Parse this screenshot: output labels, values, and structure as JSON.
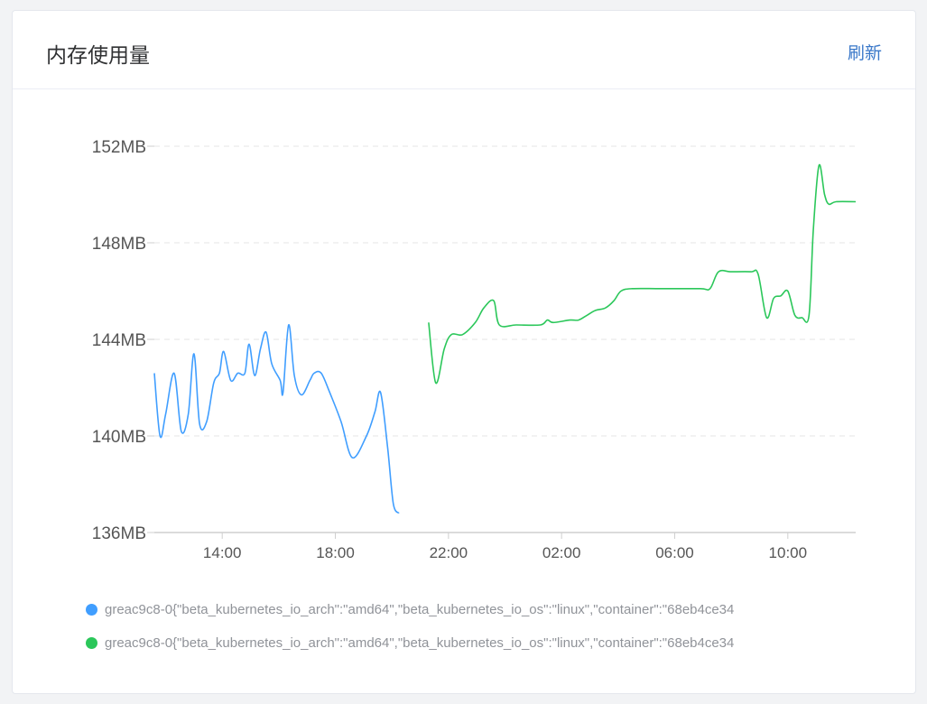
{
  "card": {
    "title": "内存使用量",
    "refresh_label": "刷新"
  },
  "chart_data": {
    "type": "line",
    "title": "内存使用量",
    "xlabel": "",
    "ylabel": "",
    "x_unit": "hours (since 00:00 day 1, wraps past 24)",
    "xlim": [
      11.6,
      36.4
    ],
    "ylim": [
      136,
      152
    ],
    "yticks": [
      136,
      140,
      144,
      148,
      152
    ],
    "ytick_labels": [
      "136MB",
      "140MB",
      "144MB",
      "148MB",
      "152MB"
    ],
    "xticks": [
      14,
      18,
      22,
      26,
      30,
      34
    ],
    "xtick_labels": [
      "14:00",
      "18:00",
      "22:00",
      "02:00",
      "06:00",
      "10:00"
    ],
    "grid": "horizontal dashed",
    "legend_position": "bottom",
    "series": [
      {
        "name": "greac9c8-0{\"beta_kubernetes_io_arch\":\"amd64\",\"beta_kubernetes_io_os\":\"linux\",\"container\":\"68eb4ce34",
        "color": "#409eff",
        "points": [
          [
            11.6,
            142.6
          ],
          [
            11.8,
            140.0
          ],
          [
            12.0,
            140.9
          ],
          [
            12.3,
            142.6
          ],
          [
            12.55,
            140.2
          ],
          [
            12.8,
            140.9
          ],
          [
            13.0,
            143.4
          ],
          [
            13.2,
            140.5
          ],
          [
            13.45,
            140.6
          ],
          [
            13.7,
            142.2
          ],
          [
            13.9,
            142.6
          ],
          [
            14.05,
            143.5
          ],
          [
            14.3,
            142.3
          ],
          [
            14.55,
            142.6
          ],
          [
            14.8,
            142.6
          ],
          [
            14.95,
            143.8
          ],
          [
            15.15,
            142.5
          ],
          [
            15.35,
            143.6
          ],
          [
            15.55,
            144.3
          ],
          [
            15.75,
            143.0
          ],
          [
            16.05,
            142.3
          ],
          [
            16.15,
            141.8
          ],
          [
            16.35,
            144.6
          ],
          [
            16.55,
            142.5
          ],
          [
            16.8,
            141.7
          ],
          [
            17.1,
            142.3
          ],
          [
            17.25,
            142.6
          ],
          [
            17.5,
            142.6
          ],
          [
            17.8,
            141.8
          ],
          [
            18.2,
            140.6
          ],
          [
            18.6,
            139.1
          ],
          [
            19.1,
            140.0
          ],
          [
            19.4,
            141.0
          ],
          [
            19.6,
            141.8
          ],
          [
            19.85,
            139.5
          ],
          [
            20.05,
            137.2
          ],
          [
            20.25,
            136.8
          ]
        ]
      },
      {
        "name": "greac9c8-0{\"beta_kubernetes_io_arch\":\"amd64\",\"beta_kubernetes_io_os\":\"linux\",\"container\":\"68eb4ce34",
        "color": "#2bc75a",
        "points": [
          [
            21.3,
            144.7
          ],
          [
            21.55,
            142.2
          ],
          [
            21.85,
            143.6
          ],
          [
            22.1,
            144.2
          ],
          [
            22.5,
            144.2
          ],
          [
            22.95,
            144.7
          ],
          [
            23.25,
            145.3
          ],
          [
            23.6,
            145.6
          ],
          [
            23.8,
            144.6
          ],
          [
            24.4,
            144.6
          ],
          [
            25.25,
            144.6
          ],
          [
            25.5,
            144.8
          ],
          [
            25.7,
            144.7
          ],
          [
            26.3,
            144.8
          ],
          [
            26.6,
            144.8
          ],
          [
            26.9,
            145.0
          ],
          [
            27.2,
            145.2
          ],
          [
            27.55,
            145.3
          ],
          [
            27.85,
            145.6
          ],
          [
            28.1,
            146.0
          ],
          [
            28.5,
            146.1
          ],
          [
            29.5,
            146.1
          ],
          [
            30.9,
            146.1
          ],
          [
            31.25,
            146.1
          ],
          [
            31.55,
            146.8
          ],
          [
            32.0,
            146.8
          ],
          [
            32.7,
            146.8
          ],
          [
            32.95,
            146.7
          ],
          [
            33.25,
            144.9
          ],
          [
            33.5,
            145.7
          ],
          [
            33.75,
            145.8
          ],
          [
            34.0,
            146.0
          ],
          [
            34.25,
            145.0
          ],
          [
            34.5,
            144.9
          ],
          [
            34.75,
            145.0
          ],
          [
            34.9,
            148.5
          ],
          [
            35.1,
            151.2
          ],
          [
            35.3,
            150.0
          ],
          [
            35.45,
            149.6
          ],
          [
            35.7,
            149.7
          ],
          [
            36.4,
            149.7
          ]
        ]
      }
    ]
  }
}
